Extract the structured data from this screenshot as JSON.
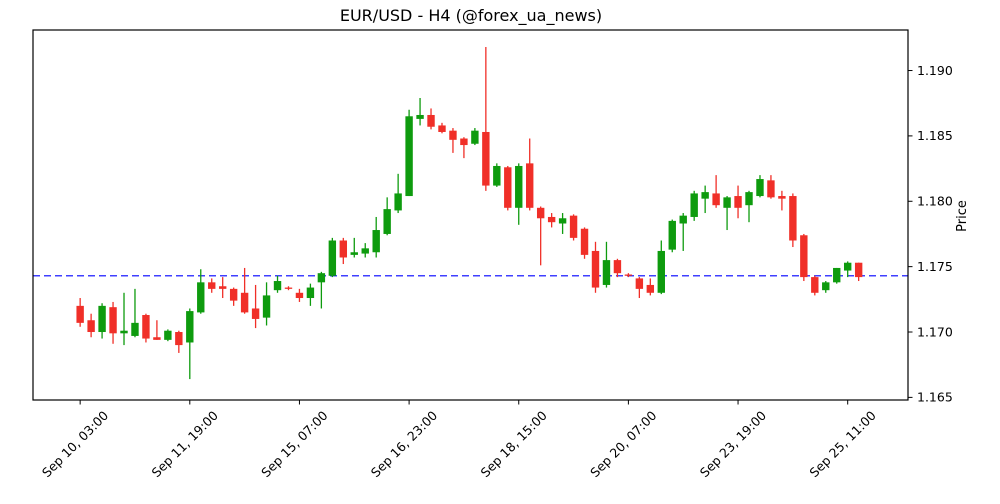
{
  "title": "EUR/USD - H4 (@forex_ua_news)",
  "chart_data": {
    "type": "candlestick",
    "title": "EUR/USD - H4 (@forex_ua_news)",
    "ylabel": "Price",
    "instrument": "EUR/USD",
    "timeframe": "H4",
    "x_tick_labels": [
      "Sep 10, 03:00",
      "Sep 11, 19:00",
      "Sep 15, 07:00",
      "Sep 16, 23:00",
      "Sep 18, 15:00",
      "Sep 20, 07:00",
      "Sep 23, 19:00",
      "Sep 25, 11:00"
    ],
    "x_tick_indices": [
      0,
      10,
      20,
      30,
      40,
      50,
      60,
      70
    ],
    "y_ticks": [
      1.165,
      1.17,
      1.175,
      1.18,
      1.185,
      1.19
    ],
    "ylim": [
      1.1648,
      1.1931
    ],
    "xlim": [
      -4.3,
      75.5
    ],
    "grid": false,
    "legend": "none",
    "hline": {
      "value": 1.1743,
      "color": "#0000ff",
      "style": "dashed"
    },
    "colors": {
      "up": "#0e9b0e",
      "down": "#f02f28",
      "axis": "#000000",
      "background": "#ffffff"
    },
    "ohlc_order": [
      "open",
      "high",
      "low",
      "close"
    ],
    "candles": [
      [
        1.172,
        1.1726,
        1.1704,
        1.1707
      ],
      [
        1.1709,
        1.1714,
        1.1696,
        1.17
      ],
      [
        1.17,
        1.1722,
        1.1695,
        1.172
      ],
      [
        1.1719,
        1.1723,
        1.1691,
        1.1699
      ],
      [
        1.1699,
        1.173,
        1.169,
        1.1701
      ],
      [
        1.1697,
        1.1733,
        1.1696,
        1.1707
      ],
      [
        1.1713,
        1.1714,
        1.1692,
        1.1695
      ],
      [
        1.1696,
        1.1709,
        1.1694,
        1.1694
      ],
      [
        1.1694,
        1.1702,
        1.1693,
        1.1701
      ],
      [
        1.17,
        1.1701,
        1.1684,
        1.169
      ],
      [
        1.1692,
        1.1718,
        1.1664,
        1.1716
      ],
      [
        1.1715,
        1.1748,
        1.1714,
        1.1738
      ],
      [
        1.1738,
        1.1741,
        1.173,
        1.1733
      ],
      [
        1.1735,
        1.1742,
        1.1726,
        1.1733
      ],
      [
        1.1733,
        1.1734,
        1.172,
        1.1724
      ],
      [
        1.173,
        1.1749,
        1.1714,
        1.1715
      ],
      [
        1.1718,
        1.1736,
        1.1703,
        1.171
      ],
      [
        1.1711,
        1.1738,
        1.1705,
        1.1728
      ],
      [
        1.1732,
        1.1743,
        1.173,
        1.1739
      ],
      [
        1.1734,
        1.1735,
        1.1732,
        1.1733
      ],
      [
        1.173,
        1.1733,
        1.1723,
        1.1726
      ],
      [
        1.1726,
        1.1737,
        1.172,
        1.1734
      ],
      [
        1.1738,
        1.1746,
        1.1718,
        1.1745
      ],
      [
        1.1743,
        1.1772,
        1.1742,
        1.177
      ],
      [
        1.177,
        1.1772,
        1.1752,
        1.1757
      ],
      [
        1.1759,
        1.1772,
        1.1757,
        1.1761
      ],
      [
        1.176,
        1.1768,
        1.1757,
        1.1764
      ],
      [
        1.1761,
        1.1788,
        1.1757,
        1.1778
      ],
      [
        1.1775,
        1.1803,
        1.1774,
        1.1794
      ],
      [
        1.1793,
        1.1821,
        1.1791,
        1.1806
      ],
      [
        1.1804,
        1.187,
        1.1804,
        1.1865
      ],
      [
        1.1863,
        1.1879,
        1.1858,
        1.1866
      ],
      [
        1.1866,
        1.1871,
        1.1855,
        1.1857
      ],
      [
        1.1858,
        1.186,
        1.1852,
        1.1853
      ],
      [
        1.1854,
        1.1856,
        1.1837,
        1.1847
      ],
      [
        1.1848,
        1.1849,
        1.1833,
        1.1843
      ],
      [
        1.1844,
        1.1856,
        1.1843,
        1.1854
      ],
      [
        1.1853,
        1.1918,
        1.1808,
        1.1812
      ],
      [
        1.1812,
        1.1829,
        1.1811,
        1.1827
      ],
      [
        1.1826,
        1.1827,
        1.1793,
        1.1795
      ],
      [
        1.1795,
        1.1829,
        1.1782,
        1.1827
      ],
      [
        1.1829,
        1.1848,
        1.1793,
        1.1795
      ],
      [
        1.1795,
        1.1796,
        1.1751,
        1.1787
      ],
      [
        1.1788,
        1.1791,
        1.178,
        1.1784
      ],
      [
        1.1783,
        1.1791,
        1.1775,
        1.1787
      ],
      [
        1.1789,
        1.179,
        1.177,
        1.1772
      ],
      [
        1.1779,
        1.178,
        1.1756,
        1.1759
      ],
      [
        1.1762,
        1.1769,
        1.173,
        1.1734
      ],
      [
        1.1736,
        1.1769,
        1.1734,
        1.1755
      ],
      [
        1.1755,
        1.1756,
        1.1742,
        1.1745
      ],
      [
        1.1744,
        1.1745,
        1.1742,
        1.1743
      ],
      [
        1.1741,
        1.1742,
        1.1726,
        1.1733
      ],
      [
        1.1736,
        1.1741,
        1.1728,
        1.173
      ],
      [
        1.173,
        1.177,
        1.1729,
        1.1762
      ],
      [
        1.1763,
        1.1786,
        1.1761,
        1.1785
      ],
      [
        1.1783,
        1.1791,
        1.1762,
        1.1789
      ],
      [
        1.1788,
        1.1808,
        1.1785,
        1.1806
      ],
      [
        1.1802,
        1.1812,
        1.1791,
        1.1807
      ],
      [
        1.1806,
        1.182,
        1.1795,
        1.1797
      ],
      [
        1.1795,
        1.1804,
        1.1778,
        1.1803
      ],
      [
        1.1804,
        1.1812,
        1.1787,
        1.1795
      ],
      [
        1.1797,
        1.1808,
        1.1784,
        1.1807
      ],
      [
        1.1804,
        1.182,
        1.1803,
        1.1817
      ],
      [
        1.1816,
        1.182,
        1.1802,
        1.1803
      ],
      [
        1.1804,
        1.1808,
        1.1793,
        1.1802
      ],
      [
        1.1804,
        1.1806,
        1.1765,
        1.177
      ],
      [
        1.1774,
        1.1775,
        1.1739,
        1.1742
      ],
      [
        1.1742,
        1.1743,
        1.1728,
        1.173
      ],
      [
        1.1732,
        1.1739,
        1.173,
        1.1738
      ],
      [
        1.1738,
        1.1749,
        1.1737,
        1.1749
      ],
      [
        1.1747,
        1.1754,
        1.1742,
        1.1753
      ],
      [
        1.1753,
        1.1753,
        1.1739,
        1.1742
      ]
    ]
  }
}
